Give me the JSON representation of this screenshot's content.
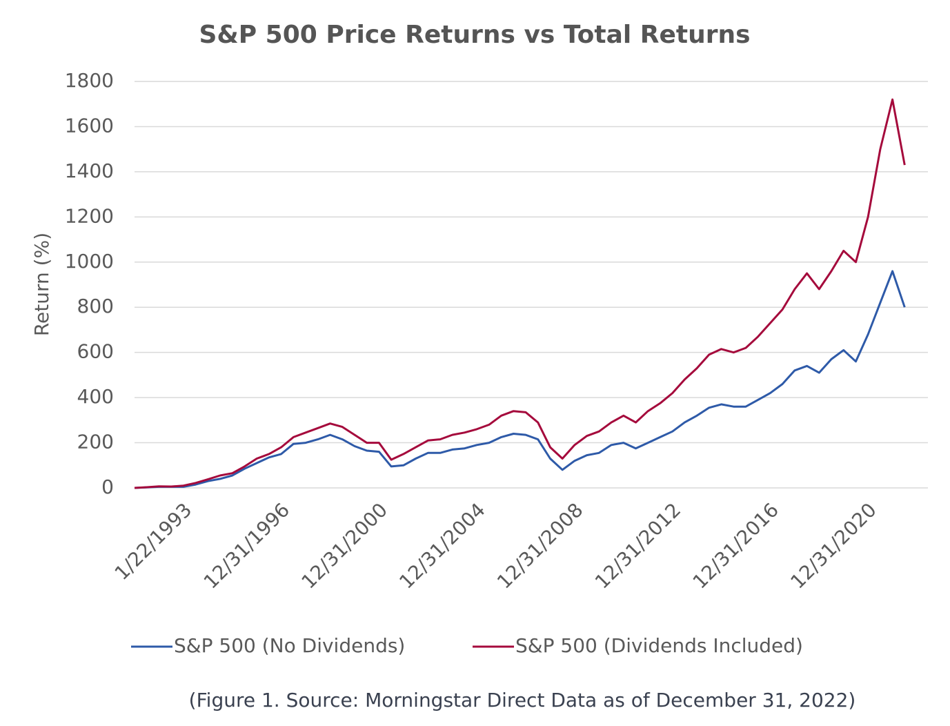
{
  "chart_data": {
    "type": "line",
    "title": "S&P 500 Price Returns vs Total Returns",
    "y_label": "Return (%)",
    "caption": "(Figure 1. Source: Morningstar Direct Data as of December 31, 2022)",
    "categories": [
      null,
      null,
      null,
      null,
      "1/22/1993",
      null,
      null,
      null,
      null,
      null,
      null,
      null,
      "12/31/1996",
      null,
      null,
      null,
      null,
      null,
      null,
      null,
      "12/31/2000",
      null,
      null,
      null,
      null,
      null,
      null,
      null,
      "12/31/2004",
      null,
      null,
      null,
      null,
      null,
      null,
      null,
      "12/31/2008",
      null,
      null,
      null,
      null,
      null,
      null,
      null,
      "12/31/2012",
      null,
      null,
      null,
      null,
      null,
      null,
      null,
      "12/31/2016",
      null,
      null,
      null,
      null,
      null,
      null,
      null,
      "12/31/2020",
      null,
      null,
      null
    ],
    "series": [
      {
        "name": "S&P 500 (No Dividends)",
        "color": "#2e5aa8",
        "values": [
          0,
          2,
          5,
          5,
          5,
          15,
          30,
          40,
          55,
          85,
          110,
          135,
          150,
          195,
          200,
          215,
          235,
          215,
          185,
          165,
          160,
          95,
          100,
          130,
          155,
          155,
          170,
          175,
          190,
          200,
          225,
          240,
          235,
          215,
          130,
          80,
          120,
          145,
          155,
          190,
          200,
          175,
          200,
          225,
          250,
          290,
          320,
          355,
          370,
          360,
          360,
          390,
          420,
          460,
          520,
          540,
          510,
          570,
          610,
          560,
          680,
          820,
          960,
          800
        ]
      },
      {
        "name": "S&P 500 (Dividends Included)",
        "color": "#a50a3c",
        "values": [
          0,
          3,
          7,
          6,
          10,
          22,
          38,
          55,
          65,
          95,
          130,
          150,
          180,
          225,
          245,
          265,
          285,
          270,
          235,
          200,
          200,
          125,
          150,
          180,
          210,
          215,
          235,
          245,
          260,
          280,
          320,
          340,
          335,
          290,
          180,
          130,
          190,
          230,
          250,
          290,
          320,
          290,
          340,
          375,
          420,
          480,
          530,
          590,
          615,
          600,
          620,
          670,
          730,
          790,
          880,
          950,
          880,
          960,
          1050,
          1000,
          1200,
          1500,
          1720,
          1430
        ]
      }
    ],
    "ylim": [
      0,
      1800
    ],
    "yticks": [
      0,
      200,
      400,
      600,
      800,
      1000,
      1200,
      1400,
      1600,
      1800
    ],
    "grid": true
  }
}
